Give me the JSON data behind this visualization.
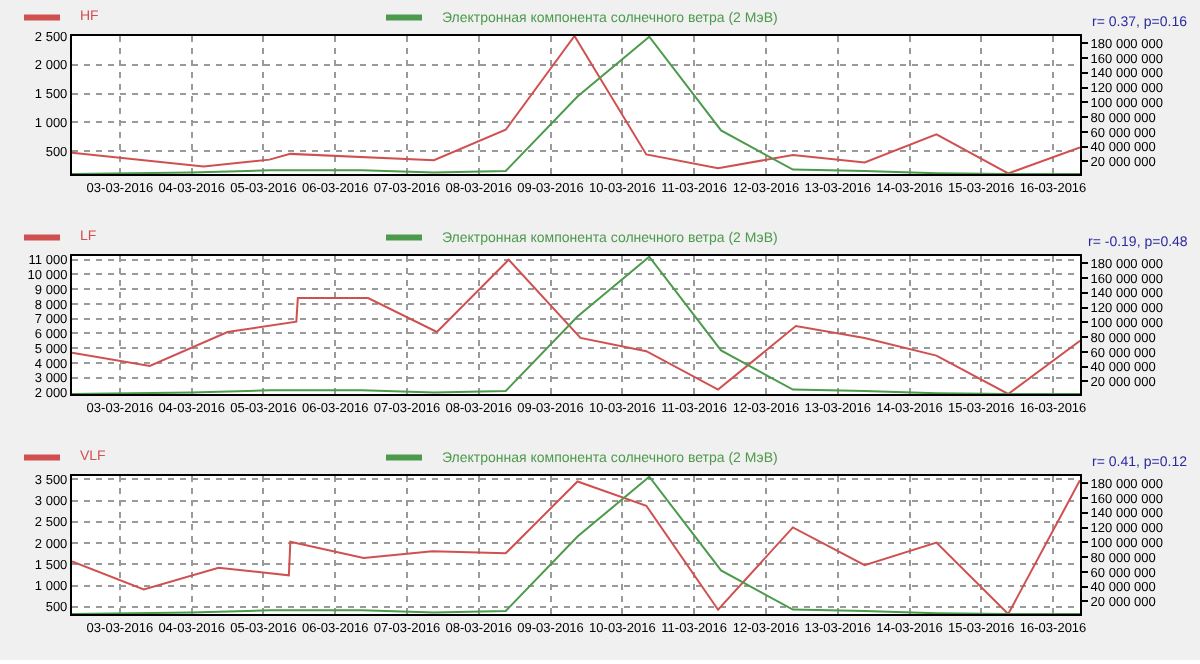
{
  "chart_data": [
    {
      "type": "line",
      "legend": "top",
      "grid": true,
      "line_style": "solid",
      "marker": "none",
      "annotations": [
        "r= 0.37, p=0.16"
      ],
      "xlim": [
        "2016-03-02T08:00",
        "2016-03-16T09:00"
      ],
      "xticks": [
        {
          "value": "2016-03-03",
          "label": "03-03-2016"
        },
        {
          "value": "2016-03-04",
          "label": "04-03-2016"
        },
        {
          "value": "2016-03-05",
          "label": "05-03-2016"
        },
        {
          "value": "2016-03-06",
          "label": "06-03-2016"
        },
        {
          "value": "2016-03-07",
          "label": "07-03-2016"
        },
        {
          "value": "2016-03-08",
          "label": "08-03-2016"
        },
        {
          "value": "2016-03-09",
          "label": "09-03-2016"
        },
        {
          "value": "2016-03-10",
          "label": "10-03-2016"
        },
        {
          "value": "2016-03-11",
          "label": "11-03-2016"
        },
        {
          "value": "2016-03-12",
          "label": "12-03-2016"
        },
        {
          "value": "2016-03-13",
          "label": "13-03-2016"
        },
        {
          "value": "2016-03-14",
          "label": "14-03-2016"
        },
        {
          "value": "2016-03-15",
          "label": "15-03-2016"
        },
        {
          "value": "2016-03-16",
          "label": "16-03-2016"
        }
      ],
      "ylim": [
        100,
        2500
      ],
      "yticks": [
        500,
        {
          "value": 1000,
          "label": "1 000"
        },
        {
          "value": 1500,
          "label": "1 500"
        },
        {
          "value": 2000,
          "label": "2 000"
        },
        {
          "value": 2500,
          "label": "2 500"
        }
      ],
      "y2lim": [
        3000000,
        190000000
      ],
      "y2ticks": [
        {
          "value": 20000000,
          "label": "20 000 000"
        },
        {
          "value": 40000000,
          "label": "40 000 000"
        },
        {
          "value": 60000000,
          "label": "60 000 000"
        },
        {
          "value": 80000000,
          "label": "80 000 000"
        },
        {
          "value": 100000000,
          "label": "100 000 000"
        },
        {
          "value": 120000000,
          "label": "120 000 000"
        },
        {
          "value": 140000000,
          "label": "140 000 000"
        },
        {
          "value": 160000000,
          "label": "160 000 000"
        },
        {
          "value": 180000000,
          "label": "180 000 000"
        }
      ],
      "series": [
        {
          "name": "HF",
          "color": "#d05050",
          "x": [
            "2016-03-02T08:00",
            "2016-03-04T04:00",
            "2016-03-05T02:00",
            "2016-03-05T09:00",
            "2016-03-07T09:00",
            "2016-03-08T09:00",
            "2016-03-09T08:00",
            "2016-03-10T08:00",
            "2016-03-11T08:00",
            "2016-03-12T09:00",
            "2016-03-13T09:00",
            "2016-03-14T09:00",
            "2016-03-15T09:00",
            "2016-03-16T09:00"
          ],
          "values": [
            470,
            230,
            350,
            450,
            340,
            870,
            2500,
            440,
            200,
            430,
            300,
            790,
            110,
            560
          ]
        },
        {
          "name": "Электронная компонента солнечного ветра (2 МэВ)",
          "color": "#4c9a4c",
          "axis": "y2",
          "x": [
            "2016-03-02T08:00",
            "2016-03-04T00:00",
            "2016-03-05T02:00",
            "2016-03-06T09:00",
            "2016-03-07T09:00",
            "2016-03-08T09:00",
            "2016-03-09T09:00",
            "2016-03-10T09:00",
            "2016-03-11T09:00",
            "2016-03-12T09:00",
            "2016-03-13T09:00",
            "2016-03-14T09:00",
            "2016-03-15T09:00",
            "2016-03-16T09:00"
          ],
          "values": [
            3000000,
            5000000,
            8000000,
            8000000,
            5000000,
            7000000,
            108000000,
            189000000,
            62000000,
            9000000,
            7000000,
            4000000,
            3000000,
            3000000
          ]
        }
      ]
    },
    {
      "type": "line",
      "legend": "top",
      "grid": true,
      "line_style": "solid",
      "marker": "none",
      "annotations": [
        "r= -0.19, p=0.48"
      ],
      "xlim": [
        "2016-03-02T08:00",
        "2016-03-16T09:00"
      ],
      "xticks": [
        {
          "value": "2016-03-03",
          "label": "03-03-2016"
        },
        {
          "value": "2016-03-04",
          "label": "04-03-2016"
        },
        {
          "value": "2016-03-05",
          "label": "05-03-2016"
        },
        {
          "value": "2016-03-06",
          "label": "06-03-2016"
        },
        {
          "value": "2016-03-07",
          "label": "07-03-2016"
        },
        {
          "value": "2016-03-08",
          "label": "08-03-2016"
        },
        {
          "value": "2016-03-09",
          "label": "09-03-2016"
        },
        {
          "value": "2016-03-10",
          "label": "10-03-2016"
        },
        {
          "value": "2016-03-11",
          "label": "11-03-2016"
        },
        {
          "value": "2016-03-12",
          "label": "12-03-2016"
        },
        {
          "value": "2016-03-13",
          "label": "13-03-2016"
        },
        {
          "value": "2016-03-14",
          "label": "14-03-2016"
        },
        {
          "value": "2016-03-15",
          "label": "15-03-2016"
        },
        {
          "value": "2016-03-16",
          "label": "16-03-2016"
        }
      ],
      "ylim": [
        1900,
        11250
      ],
      "yticks": [
        {
          "value": 2000,
          "label": "2 000"
        },
        {
          "value": 3000,
          "label": "3 000"
        },
        {
          "value": 4000,
          "label": "4 000"
        },
        {
          "value": 5000,
          "label": "5 000"
        },
        {
          "value": 6000,
          "label": "6 000"
        },
        {
          "value": 7000,
          "label": "7 000"
        },
        {
          "value": 8000,
          "label": "8 000"
        },
        {
          "value": 9000,
          "label": "9 000"
        },
        {
          "value": 10000,
          "label": "10 000"
        },
        {
          "value": 11000,
          "label": "11 000"
        }
      ],
      "y2lim": [
        3000000,
        190000000
      ],
      "y2ticks": [
        {
          "value": 20000000,
          "label": "20 000 000"
        },
        {
          "value": 40000000,
          "label": "40 000 000"
        },
        {
          "value": 60000000,
          "label": "60 000 000"
        },
        {
          "value": 80000000,
          "label": "80 000 000"
        },
        {
          "value": 100000000,
          "label": "100 000 000"
        },
        {
          "value": 120000000,
          "label": "120 000 000"
        },
        {
          "value": 140000000,
          "label": "140 000 000"
        },
        {
          "value": 160000000,
          "label": "160 000 000"
        },
        {
          "value": 180000000,
          "label": "180 000 000"
        }
      ],
      "series": [
        {
          "name": "LF",
          "color": "#d05050",
          "x": [
            "2016-03-02T08:00",
            "2016-03-03T10:00",
            "2016-03-04T12:00",
            "2016-03-05T11:00",
            "2016-03-05T11:30",
            "2016-03-06T11:00",
            "2016-03-07T10:00",
            "2016-03-08T10:00",
            "2016-03-09T10:00",
            "2016-03-10T08:00",
            "2016-03-11T08:00",
            "2016-03-12T10:00",
            "2016-03-13T09:00",
            "2016-03-14T09:00",
            "2016-03-15T09:00",
            "2016-03-16T09:00"
          ],
          "values": [
            4700,
            3800,
            6100,
            6800,
            8400,
            8400,
            6100,
            11000,
            5700,
            4800,
            2200,
            6500,
            5700,
            4500,
            1900,
            5500
          ]
        },
        {
          "name": "Электронная компонента солнечного ветра (2 МэВ)",
          "color": "#4c9a4c",
          "axis": "y2",
          "x": [
            "2016-03-02T08:00",
            "2016-03-04T00:00",
            "2016-03-05T02:00",
            "2016-03-06T09:00",
            "2016-03-07T09:00",
            "2016-03-08T09:00",
            "2016-03-09T09:00",
            "2016-03-10T09:00",
            "2016-03-11T09:00",
            "2016-03-12T09:00",
            "2016-03-13T09:00",
            "2016-03-14T09:00",
            "2016-03-15T09:00",
            "2016-03-16T09:00"
          ],
          "values": [
            3000000,
            5000000,
            8000000,
            8000000,
            5000000,
            7000000,
            108000000,
            189000000,
            62000000,
            9000000,
            7000000,
            4000000,
            3000000,
            3000000
          ]
        }
      ]
    },
    {
      "type": "line",
      "legend": "top",
      "grid": true,
      "line_style": "solid",
      "marker": "none",
      "annotations": [
        "r= 0.41, p=0.12"
      ],
      "xlim": [
        "2016-03-02T08:00",
        "2016-03-16T09:00"
      ],
      "xticks": [
        {
          "value": "2016-03-03",
          "label": "03-03-2016"
        },
        {
          "value": "2016-03-04",
          "label": "04-03-2016"
        },
        {
          "value": "2016-03-05",
          "label": "05-03-2016"
        },
        {
          "value": "2016-03-06",
          "label": "06-03-2016"
        },
        {
          "value": "2016-03-07",
          "label": "07-03-2016"
        },
        {
          "value": "2016-03-08",
          "label": "08-03-2016"
        },
        {
          "value": "2016-03-09",
          "label": "09-03-2016"
        },
        {
          "value": "2016-03-10",
          "label": "10-03-2016"
        },
        {
          "value": "2016-03-11",
          "label": "11-03-2016"
        },
        {
          "value": "2016-03-12",
          "label": "12-03-2016"
        },
        {
          "value": "2016-03-13",
          "label": "13-03-2016"
        },
        {
          "value": "2016-03-14",
          "label": "14-03-2016"
        },
        {
          "value": "2016-03-15",
          "label": "15-03-2016"
        },
        {
          "value": "2016-03-16",
          "label": "16-03-2016"
        }
      ],
      "ylim": [
        330,
        3580
      ],
      "yticks": [
        500,
        {
          "value": 1000,
          "label": "1 000"
        },
        {
          "value": 1500,
          "label": "1 500"
        },
        {
          "value": 2000,
          "label": "2 000"
        },
        {
          "value": 2500,
          "label": "2 500"
        },
        {
          "value": 3000,
          "label": "3 000"
        },
        {
          "value": 3500,
          "label": "3 500"
        }
      ],
      "y2lim": [
        3000000,
        190000000
      ],
      "y2ticks": [
        {
          "value": 20000000,
          "label": "20 000 000"
        },
        {
          "value": 40000000,
          "label": "40 000 000"
        },
        {
          "value": 60000000,
          "label": "60 000 000"
        },
        {
          "value": 80000000,
          "label": "80 000 000"
        },
        {
          "value": 100000000,
          "label": "100 000 000"
        },
        {
          "value": 120000000,
          "label": "120 000 000"
        },
        {
          "value": 140000000,
          "label": "140 000 000"
        },
        {
          "value": 160000000,
          "label": "160 000 000"
        },
        {
          "value": 180000000,
          "label": "180 000 000"
        }
      ],
      "series": [
        {
          "name": "VLF",
          "color": "#d05050",
          "x": [
            "2016-03-02T08:00",
            "2016-03-03T08:00",
            "2016-03-04T09:00",
            "2016-03-05T08:30",
            "2016-03-05T09:00",
            "2016-03-06T09:30",
            "2016-03-07T08:30",
            "2016-03-08T09:00",
            "2016-03-09T09:00",
            "2016-03-10T08:00",
            "2016-03-11T08:00",
            "2016-03-12T09:00",
            "2016-03-13T09:00",
            "2016-03-14T09:00",
            "2016-03-15T09:00",
            "2016-03-16T09:00"
          ],
          "values": [
            1570,
            910,
            1420,
            1240,
            2030,
            1650,
            1810,
            1760,
            3450,
            2880,
            430,
            2370,
            1480,
            2010,
            330,
            3480
          ]
        },
        {
          "name": "Электронная компонента солнечного ветра (2 МэВ)",
          "color": "#4c9a4c",
          "axis": "y2",
          "x": [
            "2016-03-02T08:00",
            "2016-03-04T00:00",
            "2016-03-05T02:00",
            "2016-03-06T09:00",
            "2016-03-07T09:00",
            "2016-03-08T09:00",
            "2016-03-09T09:00",
            "2016-03-10T09:00",
            "2016-03-11T09:00",
            "2016-03-12T09:00",
            "2016-03-13T09:00",
            "2016-03-14T09:00",
            "2016-03-15T09:00",
            "2016-03-16T09:00"
          ],
          "values": [
            3000000,
            5000000,
            8000000,
            8000000,
            5000000,
            7000000,
            108000000,
            189000000,
            62000000,
            9000000,
            7000000,
            4000000,
            3000000,
            3000000
          ]
        }
      ]
    }
  ]
}
